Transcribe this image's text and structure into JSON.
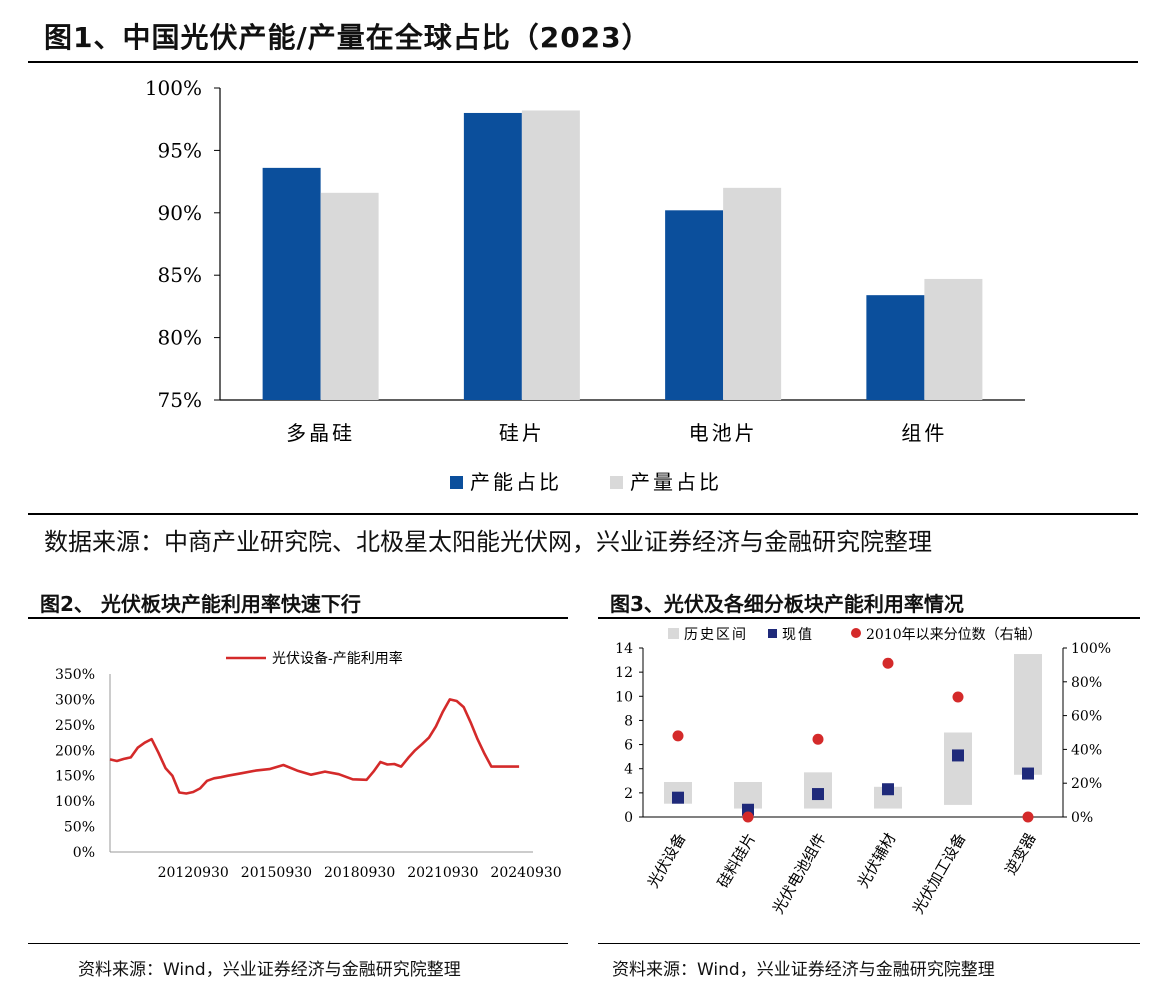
{
  "fig1": {
    "title": "图1、中国光伏产能/产量在全球占比（2023）",
    "source": "数据来源：中商产业研究院、北极星太阳能光伏网，兴业证券经济与金融研究院整理"
  },
  "fig2": {
    "title": "图2、  光伏板块产能利用率快速下行",
    "source": "资料来源：Wind，兴业证券经济与金融研究院整理"
  },
  "fig3": {
    "title": "图3、光伏及各细分板块产能利用率情况",
    "source": "资料来源：Wind，兴业证券经济与金融研究院整理"
  },
  "colors": {
    "blue": "#0b4f9c",
    "gray": "#d9d9d9",
    "red": "#d42a2a",
    "navy": "#1f2a7a"
  },
  "chart_data": [
    {
      "type": "bar",
      "title": "图1、中国光伏产能/产量在全球占比（2023）",
      "categories": [
        "多晶硅",
        "硅片",
        "电池片",
        "组件"
      ],
      "series": [
        {
          "name": "产能占比",
          "values": [
            93.6,
            98.0,
            90.2,
            83.4
          ]
        },
        {
          "name": "产量占比",
          "values": [
            91.6,
            98.2,
            92.0,
            84.7
          ]
        }
      ],
      "ylim": [
        75,
        100
      ],
      "yticks": [
        75,
        80,
        85,
        90,
        95,
        100
      ],
      "ytick_labels": [
        "75%",
        "80%",
        "85%",
        "90%",
        "95%",
        "100%"
      ],
      "legend": "bottom"
    },
    {
      "type": "line",
      "title": "光伏板块产能利用率快速下行",
      "series_name": "光伏设备-产能利用率",
      "x": [
        2009.75,
        2010.0,
        2010.25,
        2010.5,
        2010.75,
        2011.0,
        2011.25,
        2011.5,
        2011.75,
        2012.0,
        2012.25,
        2012.5,
        2012.75,
        2013.0,
        2013.25,
        2013.5,
        2013.75,
        2014.0,
        2014.5,
        2015.0,
        2015.5,
        2016.0,
        2016.5,
        2017.0,
        2017.5,
        2018.0,
        2018.5,
        2019.0,
        2019.25,
        2019.5,
        2019.75,
        2020.0,
        2020.25,
        2020.5,
        2020.75,
        2021.0,
        2021.25,
        2021.5,
        2021.75,
        2022.0,
        2022.25,
        2022.5,
        2022.75,
        2023.0,
        2023.25,
        2023.5,
        2023.75,
        2024.0,
        2024.25,
        2024.5,
        2024.75
      ],
      "values": [
        182,
        179,
        183,
        186,
        205,
        215,
        222,
        195,
        165,
        150,
        117,
        115,
        118,
        125,
        140,
        145,
        147,
        150,
        155,
        160,
        163,
        171,
        160,
        152,
        158,
        153,
        143,
        142,
        158,
        177,
        172,
        173,
        168,
        185,
        200,
        212,
        225,
        247,
        276,
        300,
        297,
        285,
        255,
        222,
        193,
        168,
        168,
        168,
        168,
        168,
        168
      ],
      "yticks": [
        0,
        50,
        100,
        150,
        200,
        250,
        300,
        350
      ],
      "ytick_labels": [
        "0%",
        "50%",
        "100%",
        "150%",
        "200%",
        "250%",
        "300%",
        "350%"
      ],
      "ylim": [
        0,
        350
      ],
      "xtick_labels": [
        "20120930",
        "20150930",
        "20180930",
        "20210930",
        "20240930"
      ],
      "legend": "top-center"
    },
    {
      "type": "box-range",
      "title": "光伏及各细分板块产能利用率情况",
      "categories": [
        "光伏设备",
        "硅料硅片",
        "光伏电池组件",
        "光伏辅材",
        "光伏加工设备",
        "逆变器"
      ],
      "range_low": [
        1.1,
        0.7,
        0.7,
        0.7,
        1.0,
        3.5
      ],
      "range_high": [
        2.9,
        2.9,
        3.7,
        2.5,
        7.0,
        13.5
      ],
      "current": [
        1.6,
        0.6,
        1.9,
        2.3,
        5.1,
        3.6
      ],
      "percentile": [
        48,
        0,
        46,
        91,
        71,
        0
      ],
      "yticks_left": [
        0,
        2,
        4,
        6,
        8,
        10,
        12,
        14
      ],
      "ytick_labels_left": [
        "0",
        "2",
        "4",
        "6",
        "8",
        "10",
        "12",
        "14"
      ],
      "yticks_right": [
        0,
        20,
        40,
        60,
        80,
        100
      ],
      "ytick_labels_right": [
        "0%",
        "20%",
        "40%",
        "60%",
        "80%",
        "100%"
      ],
      "legend": [
        "历史区间",
        "现值",
        "2010年以来分位数（右轴）"
      ]
    }
  ]
}
